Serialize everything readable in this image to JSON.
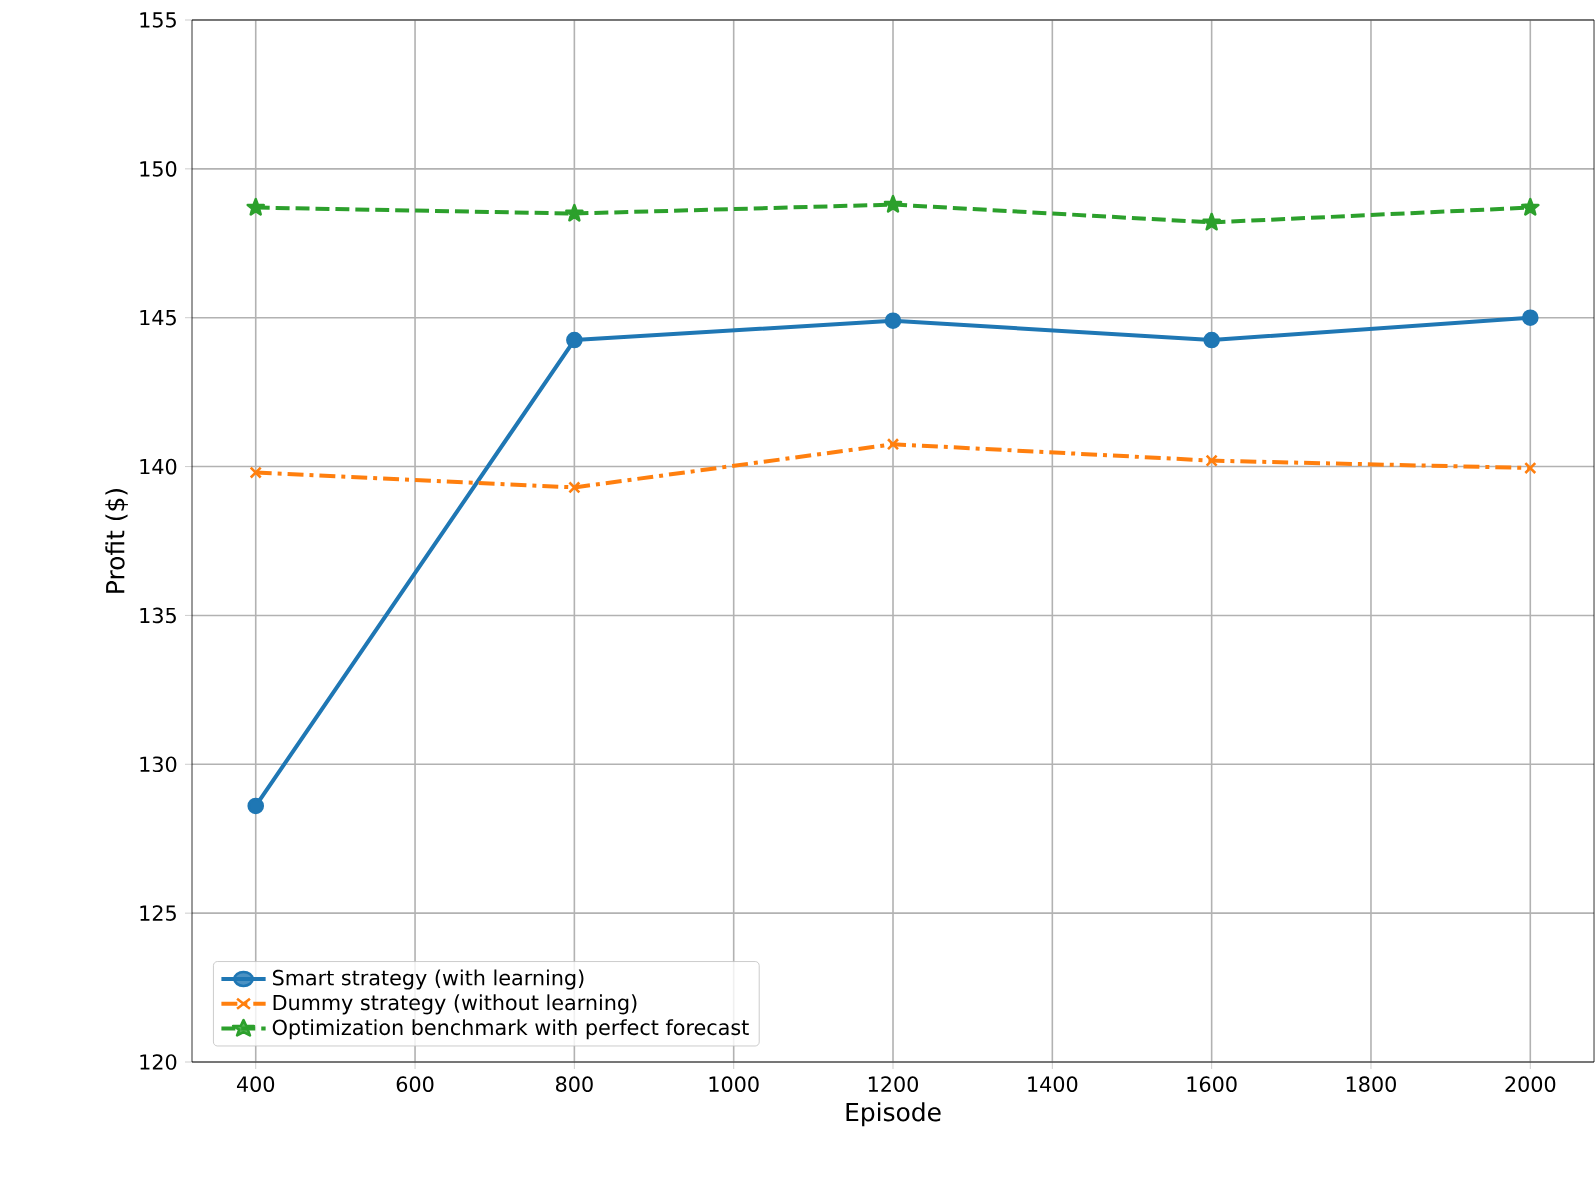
{
  "chart_data": {
    "type": "line",
    "xlabel": "Episode",
    "ylabel": "Profit ($)",
    "x": [
      400,
      800,
      1200,
      1600,
      2000
    ],
    "series": [
      {
        "name": "Smart strategy (with learning)",
        "color": "#1f77b4",
        "marker": "circle",
        "line_style": "solid",
        "values": [
          128.6,
          144.25,
          144.9,
          144.25,
          145.0
        ]
      },
      {
        "name": "Dummy strategy (without learning)",
        "color": "#ff7f0e",
        "marker": "cross",
        "line_style": "dashdot",
        "values": [
          139.8,
          139.3,
          140.75,
          140.2,
          139.95
        ]
      },
      {
        "name": "Optimization benchmark with perfect forecast",
        "color": "#2ca02c",
        "marker": "star",
        "line_style": "dashed",
        "values": [
          148.7,
          148.5,
          148.8,
          148.2,
          148.7
        ]
      }
    ],
    "xlim": [
      320,
      2080
    ],
    "ylim": [
      120,
      155
    ],
    "xticks": [
      400,
      600,
      800,
      1000,
      1200,
      1400,
      1600,
      1800,
      2000
    ],
    "yticks": [
      120,
      125,
      130,
      135,
      140,
      145,
      150,
      155
    ],
    "grid": true,
    "legend": "bottom left"
  }
}
